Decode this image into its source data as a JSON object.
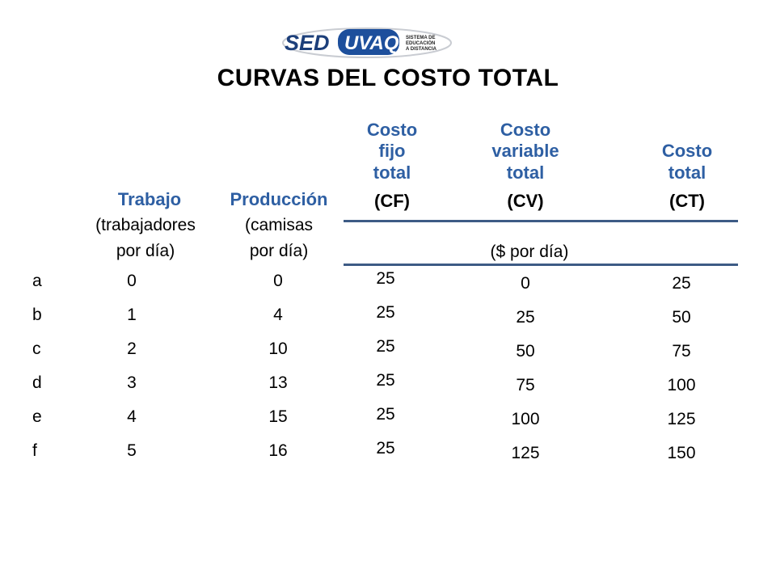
{
  "logo": {
    "brand_left": "SED",
    "brand_right": "UVAQ",
    "tagline": [
      "SISTEMA DE",
      "EDUCACIÓN",
      "A DISTANCIA"
    ]
  },
  "title": "CURVAS DEL COSTO TOTAL",
  "headers": {
    "trabajo": {
      "main": "Trabajo",
      "sub1": "(trabajadores",
      "sub2": "por día)"
    },
    "produccion": {
      "main": "Producción",
      "sub1": "(camisas",
      "sub2": "por día)"
    },
    "cf": {
      "l1": "Costo",
      "l2": "fijo",
      "l3": "total",
      "abbr": "(CF)"
    },
    "cv": {
      "l1": "Costo",
      "l2": "variable",
      "l3": "total",
      "abbr": "(CV)"
    },
    "ct": {
      "l1": "Costo",
      "l2": "total",
      "abbr": "(CT)"
    },
    "units": "($ por día)"
  },
  "rows": [
    {
      "label": "a",
      "trabajo": "0",
      "produccion": "0",
      "cf": "25",
      "cv": "0",
      "ct": "25"
    },
    {
      "label": "b",
      "trabajo": "1",
      "produccion": "4",
      "cf": "25",
      "cv": "25",
      "ct": "50"
    },
    {
      "label": "c",
      "trabajo": "2",
      "produccion": "10",
      "cf": "25",
      "cv": "50",
      "ct": "75"
    },
    {
      "label": "d",
      "trabajo": "3",
      "produccion": "13",
      "cf": "25",
      "cv": "75",
      "ct": "100"
    },
    {
      "label": "e",
      "trabajo": "4",
      "produccion": "15",
      "cf": "25",
      "cv": "100",
      "ct": "125"
    },
    {
      "label": "f",
      "trabajo": "5",
      "produccion": "16",
      "cf": "25",
      "cv": "125",
      "ct": "150"
    }
  ],
  "colors": {
    "header_blue": "#2e5fa3",
    "rule": "#3d5b85",
    "logo_blue": "#1d4f9c"
  }
}
